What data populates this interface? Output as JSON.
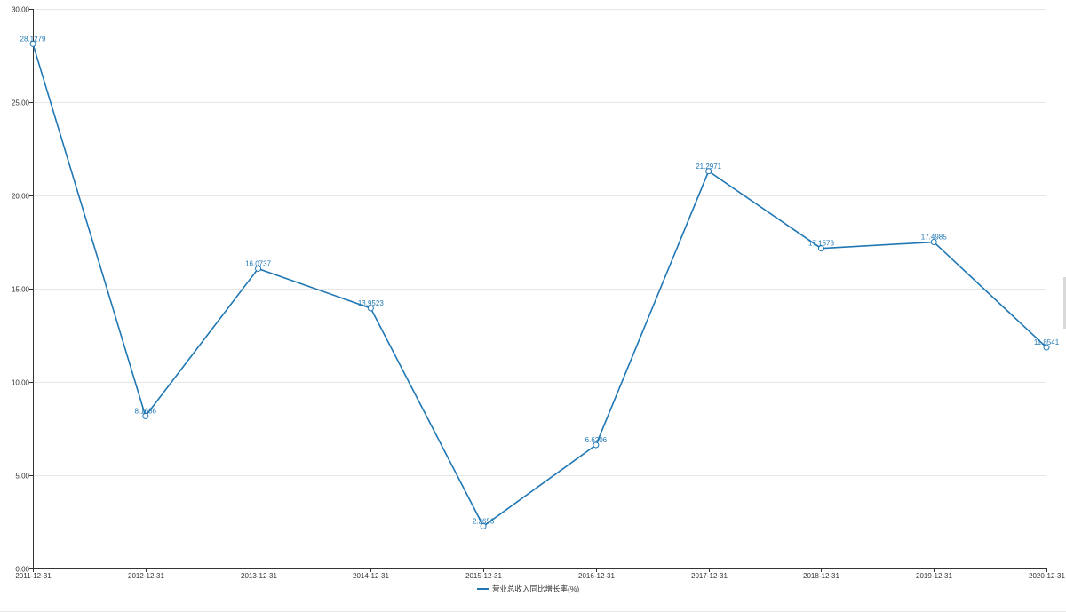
{
  "chart_data": {
    "type": "line",
    "categories": [
      "2011-12-31",
      "2012-12-31",
      "2013-12-31",
      "2014-12-31",
      "2015-12-31",
      "2016-12-31",
      "2017-12-31",
      "2018-12-31",
      "2019-12-31",
      "2020-12-31"
    ],
    "series": [
      {
        "name": "营业总收入同比增长率(%)",
        "values": [
          28.1279,
          8.1686,
          16.0737,
          13.9523,
          2.2656,
          6.6206,
          21.2971,
          17.1576,
          17.4985,
          11.8541
        ],
        "labels": [
          "28.1279",
          "8.1686",
          "16.0737",
          "13.9523",
          "2.2656",
          "6.6206",
          "21.2971",
          "17.1576",
          "17.4985",
          "11.8541"
        ]
      }
    ],
    "yticks": [
      "0.00",
      "5.00",
      "10.00",
      "15.00",
      "20.00",
      "25.00",
      "30.00"
    ],
    "ylim": [
      0,
      30
    ],
    "grid": true,
    "legend_position": "bottom-center",
    "colors": {
      "series": "#1f77b4",
      "axis": "#333333",
      "grid": "#e6e6e6"
    }
  }
}
